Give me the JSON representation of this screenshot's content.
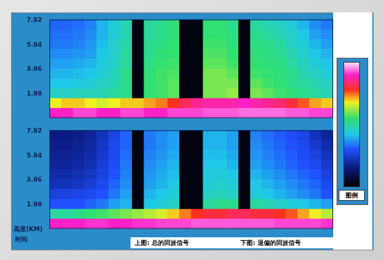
{
  "chart_data": [
    {
      "type": "heatmap",
      "title": "上图: 总的回波信号",
      "categories": [
        null,
        null,
        null,
        null,
        null,
        null,
        null,
        null,
        null,
        null,
        null,
        null,
        null,
        null,
        null,
        null,
        null,
        null,
        null,
        null,
        null,
        null,
        null,
        null
      ],
      "y_edges": [
        0,
        0.8,
        1.6,
        2.4,
        3.2,
        4.0,
        4.8,
        5.6,
        6.4,
        7.2,
        8.0
      ],
      "cells": [
        [
          0.9,
          0.9,
          0.92,
          0.92,
          0.9,
          0.9,
          0.92,
          0.92,
          0.9,
          0.9,
          0.92,
          0.92,
          0.92,
          0.93,
          0.93,
          0.93,
          0.94,
          0.94,
          0.94,
          0.94,
          0.93,
          0.93,
          0.92,
          0.92
        ],
        [
          0.68,
          0.7,
          0.7,
          0.68,
          0.66,
          0.68,
          0.7,
          0.7,
          0.72,
          0.74,
          0.78,
          0.82,
          0.86,
          0.88,
          0.88,
          0.88,
          0.9,
          0.88,
          0.86,
          0.84,
          0.8,
          0.76,
          0.72,
          0.7
        ],
        [
          0.46,
          0.46,
          0.47,
          0.47,
          0.48,
          0.5,
          0.52,
          0.02,
          0.55,
          0.56,
          0.58,
          0.02,
          0.02,
          0.6,
          0.6,
          0.62,
          0.02,
          0.6,
          0.58,
          0.56,
          0.54,
          0.52,
          0.5,
          0.48
        ],
        [
          0.42,
          0.42,
          0.43,
          0.44,
          0.46,
          0.48,
          0.52,
          0.02,
          0.55,
          0.56,
          0.58,
          0.02,
          0.02,
          0.6,
          0.6,
          0.6,
          0.02,
          0.58,
          0.56,
          0.55,
          0.52,
          0.5,
          0.48,
          0.46
        ],
        [
          0.4,
          0.4,
          0.41,
          0.42,
          0.44,
          0.47,
          0.52,
          0.02,
          0.54,
          0.56,
          0.57,
          0.02,
          0.02,
          0.6,
          0.6,
          0.58,
          0.02,
          0.56,
          0.55,
          0.54,
          0.52,
          0.48,
          0.46,
          0.44
        ],
        [
          0.38,
          0.38,
          0.39,
          0.4,
          0.43,
          0.46,
          0.5,
          0.02,
          0.53,
          0.55,
          0.56,
          0.02,
          0.02,
          0.58,
          0.58,
          0.56,
          0.02,
          0.55,
          0.54,
          0.53,
          0.5,
          0.47,
          0.44,
          0.42
        ],
        [
          0.36,
          0.36,
          0.37,
          0.38,
          0.42,
          0.45,
          0.5,
          0.02,
          0.52,
          0.54,
          0.55,
          0.02,
          0.02,
          0.57,
          0.57,
          0.55,
          0.02,
          0.54,
          0.53,
          0.52,
          0.48,
          0.45,
          0.42,
          0.4
        ],
        [
          0.34,
          0.34,
          0.35,
          0.37,
          0.41,
          0.45,
          0.49,
          0.02,
          0.52,
          0.53,
          0.55,
          0.02,
          0.02,
          0.56,
          0.56,
          0.54,
          0.02,
          0.53,
          0.52,
          0.5,
          0.46,
          0.44,
          0.4,
          0.38
        ],
        [
          0.33,
          0.33,
          0.34,
          0.36,
          0.4,
          0.44,
          0.48,
          0.02,
          0.5,
          0.52,
          0.54,
          0.02,
          0.02,
          0.55,
          0.55,
          0.53,
          0.02,
          0.52,
          0.5,
          0.48,
          0.45,
          0.42,
          0.38,
          0.36
        ],
        [
          0.32,
          0.32,
          0.33,
          0.35,
          0.4,
          0.44,
          0.48,
          0.02,
          0.5,
          0.52,
          0.54,
          0.02,
          0.02,
          0.55,
          0.55,
          0.52,
          0.02,
          0.5,
          0.48,
          0.46,
          0.44,
          0.4,
          0.36,
          0.34
        ]
      ],
      "ylim": [
        0,
        8.0
      ],
      "yticks": [
        1.98,
        3.96,
        5.94,
        7.92
      ],
      "tick_labels": "y"
    },
    {
      "type": "heatmap",
      "title": "下图: 退偏的回波信号",
      "x_label": "时间",
      "y_label": "高度(KM)",
      "categories": [
        null,
        null,
        null,
        null,
        null,
        null,
        null,
        null,
        null,
        null,
        null,
        null,
        null,
        null,
        null,
        null,
        null,
        null,
        null,
        null,
        null,
        null,
        null,
        null
      ],
      "y_edges": [
        0,
        0.8,
        1.6,
        2.4,
        3.2,
        4.0,
        4.8,
        5.6,
        6.4,
        7.2,
        8.0
      ],
      "cells": [
        [
          0.9,
          0.9,
          0.9,
          0.91,
          0.91,
          0.9,
          0.9,
          0.91,
          0.91,
          0.92,
          0.92,
          0.92,
          0.93,
          0.93,
          0.93,
          0.93,
          0.93,
          0.93,
          0.93,
          0.92,
          0.92,
          0.92,
          0.92,
          0.91
        ],
        [
          0.5,
          0.5,
          0.52,
          0.55,
          0.56,
          0.58,
          0.6,
          0.62,
          0.64,
          0.66,
          0.7,
          0.74,
          0.78,
          0.8,
          0.8,
          0.82,
          0.82,
          0.8,
          0.8,
          0.78,
          0.76,
          0.72,
          0.68,
          0.64
        ],
        [
          0.3,
          0.3,
          0.3,
          0.32,
          0.34,
          0.38,
          0.4,
          0.02,
          0.42,
          0.44,
          0.46,
          0.02,
          0.02,
          0.5,
          0.52,
          0.52,
          0.02,
          0.5,
          0.48,
          0.46,
          0.44,
          0.42,
          0.4,
          0.38
        ],
        [
          0.26,
          0.26,
          0.27,
          0.28,
          0.3,
          0.34,
          0.38,
          0.02,
          0.4,
          0.42,
          0.44,
          0.02,
          0.02,
          0.46,
          0.47,
          0.46,
          0.02,
          0.44,
          0.42,
          0.4,
          0.38,
          0.36,
          0.34,
          0.3
        ],
        [
          0.22,
          0.22,
          0.23,
          0.25,
          0.28,
          0.32,
          0.36,
          0.02,
          0.38,
          0.4,
          0.42,
          0.02,
          0.02,
          0.44,
          0.45,
          0.44,
          0.02,
          0.42,
          0.4,
          0.38,
          0.36,
          0.34,
          0.32,
          0.28
        ],
        [
          0.2,
          0.2,
          0.21,
          0.23,
          0.26,
          0.3,
          0.35,
          0.02,
          0.37,
          0.39,
          0.41,
          0.02,
          0.02,
          0.43,
          0.44,
          0.42,
          0.02,
          0.4,
          0.38,
          0.36,
          0.34,
          0.32,
          0.3,
          0.26
        ],
        [
          0.18,
          0.18,
          0.19,
          0.21,
          0.25,
          0.29,
          0.34,
          0.02,
          0.36,
          0.38,
          0.4,
          0.02,
          0.02,
          0.42,
          0.42,
          0.4,
          0.02,
          0.38,
          0.36,
          0.34,
          0.32,
          0.3,
          0.28,
          0.24
        ],
        [
          0.17,
          0.17,
          0.18,
          0.2,
          0.24,
          0.28,
          0.33,
          0.02,
          0.35,
          0.37,
          0.39,
          0.02,
          0.02,
          0.41,
          0.41,
          0.39,
          0.02,
          0.37,
          0.35,
          0.33,
          0.31,
          0.29,
          0.26,
          0.22
        ],
        [
          0.16,
          0.16,
          0.17,
          0.19,
          0.23,
          0.28,
          0.32,
          0.02,
          0.34,
          0.36,
          0.38,
          0.02,
          0.02,
          0.4,
          0.4,
          0.38,
          0.02,
          0.36,
          0.34,
          0.32,
          0.3,
          0.28,
          0.24,
          0.2
        ],
        [
          0.15,
          0.15,
          0.16,
          0.18,
          0.22,
          0.27,
          0.32,
          0.02,
          0.34,
          0.36,
          0.38,
          0.02,
          0.02,
          0.4,
          0.4,
          0.38,
          0.02,
          0.35,
          0.33,
          0.31,
          0.29,
          0.27,
          0.22,
          0.18
        ]
      ],
      "ylim": [
        0,
        8.0
      ],
      "yticks": [
        1.98,
        3.96,
        5.94,
        7.92
      ],
      "tick_labels": "y"
    }
  ],
  "colorbar": {
    "title": "图例",
    "range": [
      0,
      1
    ]
  }
}
